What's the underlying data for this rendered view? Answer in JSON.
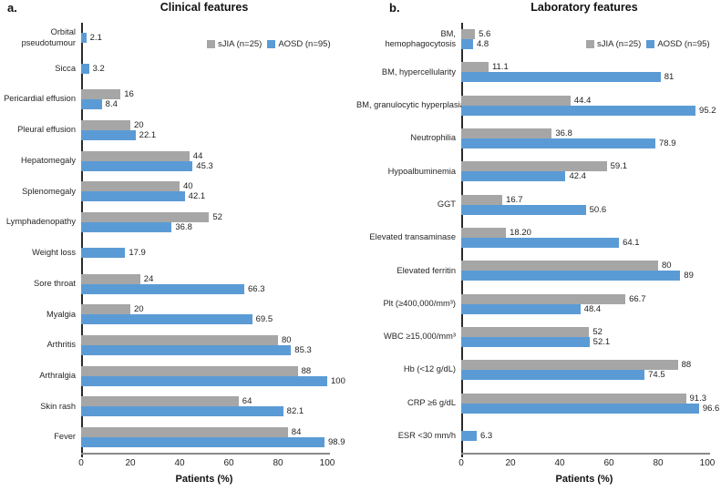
{
  "chart_data": [
    {
      "type": "bar",
      "orientation": "horizontal",
      "panel_label": "a.",
      "title": "Clinical features",
      "xlabel": "Patients (%)",
      "xlim": [
        0,
        100
      ],
      "xticks": [
        0,
        20,
        40,
        60,
        80,
        100
      ],
      "grid": false,
      "legend_position": "top-right-inside",
      "categories": [
        "Orbital\npseudotumour",
        "Sicca",
        "Pericardial effusion",
        "Pleural effusion",
        "Hepatomegaly",
        "Splenomegaly",
        "Lymphadenopathy",
        "Weight loss",
        "Sore throat",
        "Myalgia",
        "Arthritis",
        "Arthralgia",
        "Skin rash",
        "Fever"
      ],
      "series": [
        {
          "key": "sjia",
          "name": "sJIA (n=25)",
          "color": "#A6A6A6",
          "values": [
            null,
            null,
            16,
            20,
            44,
            40,
            52,
            null,
            24,
            20,
            80,
            88,
            64,
            84
          ],
          "labels": [
            null,
            null,
            "16",
            "20",
            "44",
            "40",
            "52",
            null,
            "24",
            "20",
            "80",
            "88",
            "64",
            "84"
          ]
        },
        {
          "key": "aosd",
          "name": "AOSD (n=95)",
          "color": "#5B9BD5",
          "values": [
            2.1,
            3.2,
            8.4,
            22.1,
            45.3,
            42.1,
            36.8,
            17.9,
            66.3,
            69.5,
            85.3,
            100,
            82.1,
            98.9
          ],
          "labels": [
            "2.1",
            "3.2",
            "8.4",
            "22.1",
            "45.3",
            "42.1",
            "36.8",
            "17.9",
            "66.3",
            "69.5",
            "85.3",
            "100",
            "82.1",
            "98.9"
          ]
        }
      ]
    },
    {
      "type": "bar",
      "orientation": "horizontal",
      "panel_label": "b.",
      "title": "Laboratory features",
      "xlabel": "Patients (%)",
      "xlim": [
        0,
        100
      ],
      "xticks": [
        0,
        20,
        40,
        60,
        80,
        100
      ],
      "grid": false,
      "legend_position": "top-right-inside",
      "categories": [
        "BM,\nhemophagocytosis",
        "BM, hypercellularity",
        "BM, granulocytic hyperplasia",
        "Neutrophilia",
        "Hypoalbuminemia",
        "GGT",
        "Elevated transaminase",
        "Elevated ferritin",
        "Plt (≥400,000/mm³)",
        "WBC ≥15,000/mm³",
        "Hb (<12 g/dL)",
        "CRP ≥6 g/dL",
        "ESR <30 mm/h"
      ],
      "series": [
        {
          "key": "sjia",
          "name": "sJIA (n=25)",
          "color": "#A6A6A6",
          "values": [
            5.6,
            11.1,
            44.4,
            36.8,
            59.1,
            16.7,
            18.2,
            80,
            66.7,
            52,
            88,
            91.3,
            null
          ],
          "labels": [
            "5.6",
            "11.1",
            "44.4",
            "36.8",
            "59.1",
            "16.7",
            "18.20",
            "80",
            "66.7",
            "52",
            "88",
            "91.3",
            null
          ]
        },
        {
          "key": "aosd",
          "name": "AOSD (n=95)",
          "color": "#5B9BD5",
          "values": [
            4.8,
            81,
            95.2,
            78.9,
            42.4,
            50.6,
            64.1,
            89,
            48.4,
            52.1,
            74.5,
            96.6,
            6.3
          ],
          "labels": [
            "4.8",
            "81",
            "95.2",
            "78.9",
            "42.4",
            "50.6",
            "64.1",
            "89",
            "48.4",
            "52.1",
            "74.5",
            "96.6",
            "6.3"
          ]
        }
      ]
    }
  ]
}
